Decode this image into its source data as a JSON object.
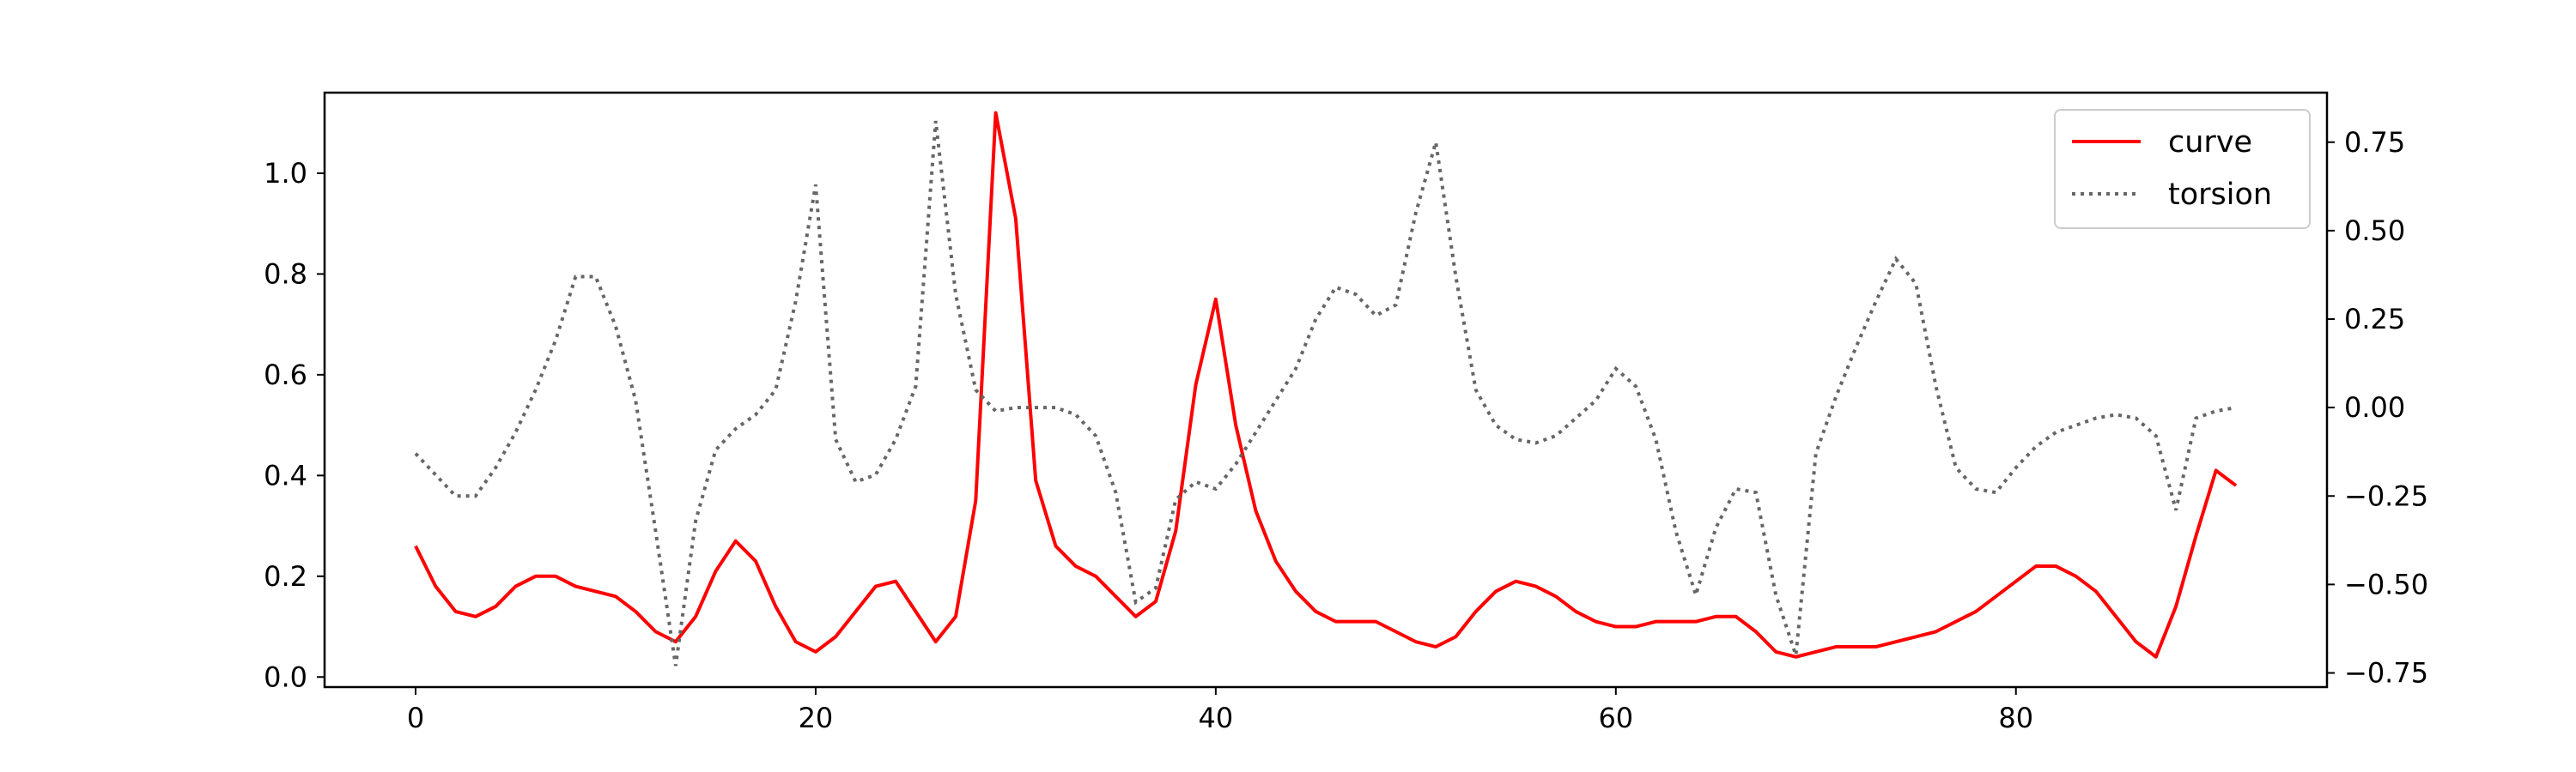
{
  "chart_data": {
    "type": "line",
    "title": "",
    "xlabel": "",
    "ylabel_left": "",
    "ylabel_right": "",
    "xlim": [
      -4.55,
      95.55
    ],
    "ylim_left": [
      -0.02,
      1.16
    ],
    "ylim_right": [
      -0.79,
      0.89
    ],
    "x_ticks": [
      0,
      20,
      40,
      60,
      80
    ],
    "y_ticks_left": [
      0.0,
      0.2,
      0.4,
      0.6,
      0.8,
      1.0
    ],
    "y_ticks_right": [
      -0.75,
      -0.5,
      -0.25,
      0.0,
      0.25,
      0.5,
      0.75
    ],
    "legend_position": "top-right",
    "grid": false,
    "x": [
      0,
      1,
      2,
      3,
      4,
      5,
      6,
      7,
      8,
      9,
      10,
      11,
      12,
      13,
      14,
      15,
      16,
      17,
      18,
      19,
      20,
      21,
      22,
      23,
      24,
      25,
      26,
      27,
      28,
      29,
      30,
      31,
      32,
      33,
      34,
      35,
      36,
      37,
      38,
      39,
      40,
      41,
      42,
      43,
      44,
      45,
      46,
      47,
      48,
      49,
      50,
      51,
      52,
      53,
      54,
      55,
      56,
      57,
      58,
      59,
      60,
      61,
      62,
      63,
      64,
      65,
      66,
      67,
      68,
      69,
      70,
      71,
      72,
      73,
      74,
      75,
      76,
      77,
      78,
      79,
      80,
      81,
      82,
      83,
      84,
      85,
      86,
      87,
      88,
      89,
      90,
      91
    ],
    "series": [
      {
        "name": "curve",
        "axis": "left",
        "color": "#ff0000",
        "style": "solid",
        "values": [
          0.26,
          0.18,
          0.13,
          0.12,
          0.14,
          0.18,
          0.2,
          0.2,
          0.18,
          0.17,
          0.16,
          0.13,
          0.09,
          0.07,
          0.12,
          0.21,
          0.27,
          0.23,
          0.14,
          0.07,
          0.05,
          0.08,
          0.13,
          0.18,
          0.19,
          0.13,
          0.07,
          0.12,
          0.35,
          1.12,
          0.91,
          0.39,
          0.26,
          0.22,
          0.2,
          0.16,
          0.12,
          0.15,
          0.29,
          0.58,
          0.75,
          0.5,
          0.33,
          0.23,
          0.17,
          0.13,
          0.11,
          0.11,
          0.11,
          0.09,
          0.07,
          0.06,
          0.08,
          0.13,
          0.17,
          0.19,
          0.18,
          0.16,
          0.13,
          0.11,
          0.1,
          0.1,
          0.11,
          0.11,
          0.11,
          0.12,
          0.12,
          0.09,
          0.05,
          0.04,
          0.05,
          0.06,
          0.06,
          0.06,
          0.07,
          0.08,
          0.09,
          0.11,
          0.13,
          0.16,
          0.19,
          0.22,
          0.22,
          0.2,
          0.17,
          0.12,
          0.07,
          0.04,
          0.14,
          0.28,
          0.41,
          0.38
        ]
      },
      {
        "name": "torsion",
        "axis": "right",
        "color": "#666666",
        "style": "dotted",
        "values": [
          -0.13,
          -0.19,
          -0.25,
          -0.25,
          -0.17,
          -0.07,
          0.05,
          0.19,
          0.37,
          0.37,
          0.23,
          0.02,
          -0.35,
          -0.73,
          -0.32,
          -0.12,
          -0.06,
          -0.02,
          0.05,
          0.3,
          0.63,
          -0.09,
          -0.21,
          -0.19,
          -0.09,
          0.06,
          0.81,
          0.32,
          0.05,
          -0.01,
          0.0,
          0.0,
          0.0,
          -0.02,
          -0.08,
          -0.24,
          -0.55,
          -0.51,
          -0.26,
          -0.21,
          -0.23,
          -0.16,
          -0.07,
          0.02,
          0.11,
          0.25,
          0.34,
          0.32,
          0.26,
          0.29,
          0.55,
          0.75,
          0.37,
          0.05,
          -0.05,
          -0.09,
          -0.1,
          -0.08,
          -0.03,
          0.02,
          0.11,
          0.06,
          -0.09,
          -0.35,
          -0.53,
          -0.34,
          -0.23,
          -0.24,
          -0.53,
          -0.7,
          -0.13,
          0.03,
          0.17,
          0.3,
          0.42,
          0.35,
          0.06,
          -0.17,
          -0.23,
          -0.24,
          -0.17,
          -0.11,
          -0.07,
          -0.05,
          -0.03,
          -0.02,
          -0.03,
          -0.08,
          -0.29,
          -0.03,
          -0.01,
          0.0
        ]
      }
    ]
  }
}
